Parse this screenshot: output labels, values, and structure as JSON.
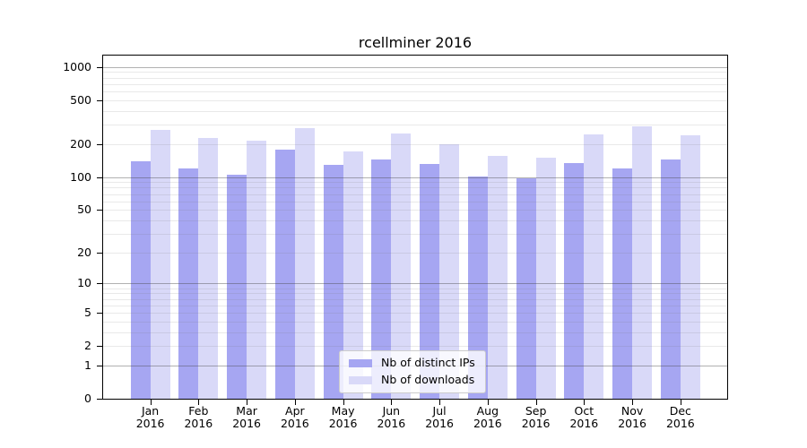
{
  "chart_data": {
    "type": "bar",
    "title": "rcellminer 2016",
    "categories": [
      "Jan",
      "Feb",
      "Mar",
      "Apr",
      "May",
      "Jun",
      "Jul",
      "Aug",
      "Sep",
      "Oct",
      "Nov",
      "Dec"
    ],
    "x_tick_second_line": "2016",
    "series": [
      {
        "name": "Nb of distinct IPs",
        "color": "#a6a6f2",
        "values": [
          139,
          120,
          106,
          179,
          130,
          145,
          131,
          101,
          98,
          134,
          121,
          145
        ]
      },
      {
        "name": "Nb of downloads",
        "color": "#d9d9f8",
        "values": [
          270,
          228,
          216,
          278,
          172,
          247,
          200,
          156,
          150,
          243,
          290,
          241
        ]
      }
    ],
    "xlabel": "",
    "ylabel": "",
    "y_scale": "log1p",
    "y_ticks": [
      0,
      1,
      2,
      5,
      10,
      20,
      50,
      100,
      200,
      500,
      1000
    ],
    "ylim": [
      0,
      1275
    ],
    "grid": "on",
    "legend": {
      "position": "bottom-center",
      "entries": [
        "Nb of distinct IPs",
        "Nb of downloads"
      ]
    },
    "axis_color": "#000000",
    "grid_major_color": "#b5b5b5",
    "grid_minor_color": "#eaeaea"
  }
}
